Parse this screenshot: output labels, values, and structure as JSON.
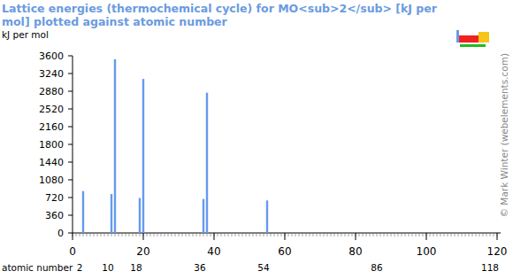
{
  "chart_data": {
    "type": "bar",
    "title": "Lattice energies (thermochemical cycle) for MO<sub>2</sub> [kJ per mol] plotted against atomic number",
    "y_label": "kJ per mol",
    "x_label": "atomic number",
    "copyright": "© Mark Winter (webelements.com)",
    "x": [
      3,
      11,
      12,
      19,
      20,
      37,
      38,
      55
    ],
    "values": [
      850,
      790,
      3530,
      710,
      3130,
      690,
      2850,
      660
    ],
    "color": "#6699ee",
    "xlim": [
      0,
      120
    ],
    "xticks": [
      0,
      20,
      40,
      60,
      80,
      100,
      120
    ],
    "period_ticks": [
      2,
      10,
      18,
      36,
      54,
      86,
      118
    ],
    "ylim": [
      0,
      3600
    ],
    "yticks": [
      0,
      360,
      720,
      1080,
      1440,
      1800,
      2160,
      2520,
      2880,
      3240,
      3600
    ],
    "grid": false
  }
}
